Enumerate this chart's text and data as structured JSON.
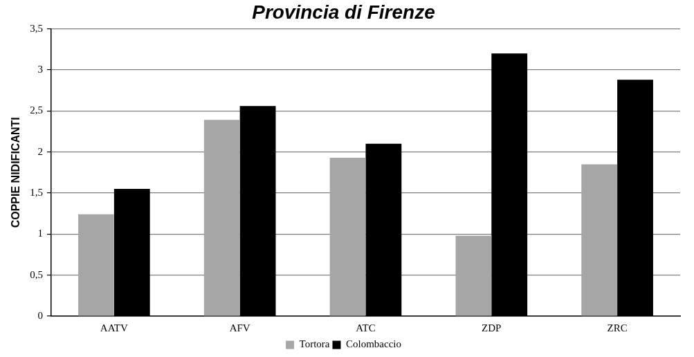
{
  "chart_data": {
    "type": "bar",
    "title": "Provincia di Firenze",
    "ylabel": "COPPIE NIDIFICANTI",
    "categories": [
      "AATV",
      "AFV",
      "ATC",
      "ZDP",
      "ZRC"
    ],
    "series": [
      {
        "name": "Tortora",
        "color": "#a6a6a6",
        "values": [
          1.24,
          2.39,
          1.93,
          0.98,
          1.85
        ]
      },
      {
        "name": "Colombaccio",
        "color": "#000000",
        "values": [
          1.55,
          2.56,
          2.1,
          3.2,
          2.88
        ]
      }
    ],
    "ylim": [
      0,
      3.5
    ],
    "yticks": [
      0,
      {
        "value": 0.5,
        "label": "0,5"
      },
      1,
      {
        "value": 1.5,
        "label": "1,5"
      },
      2,
      {
        "value": 2.5,
        "label": "2,5"
      },
      3,
      {
        "value": 3.5,
        "label": "3,5"
      }
    ],
    "grid": "y",
    "legend": "bottom"
  }
}
